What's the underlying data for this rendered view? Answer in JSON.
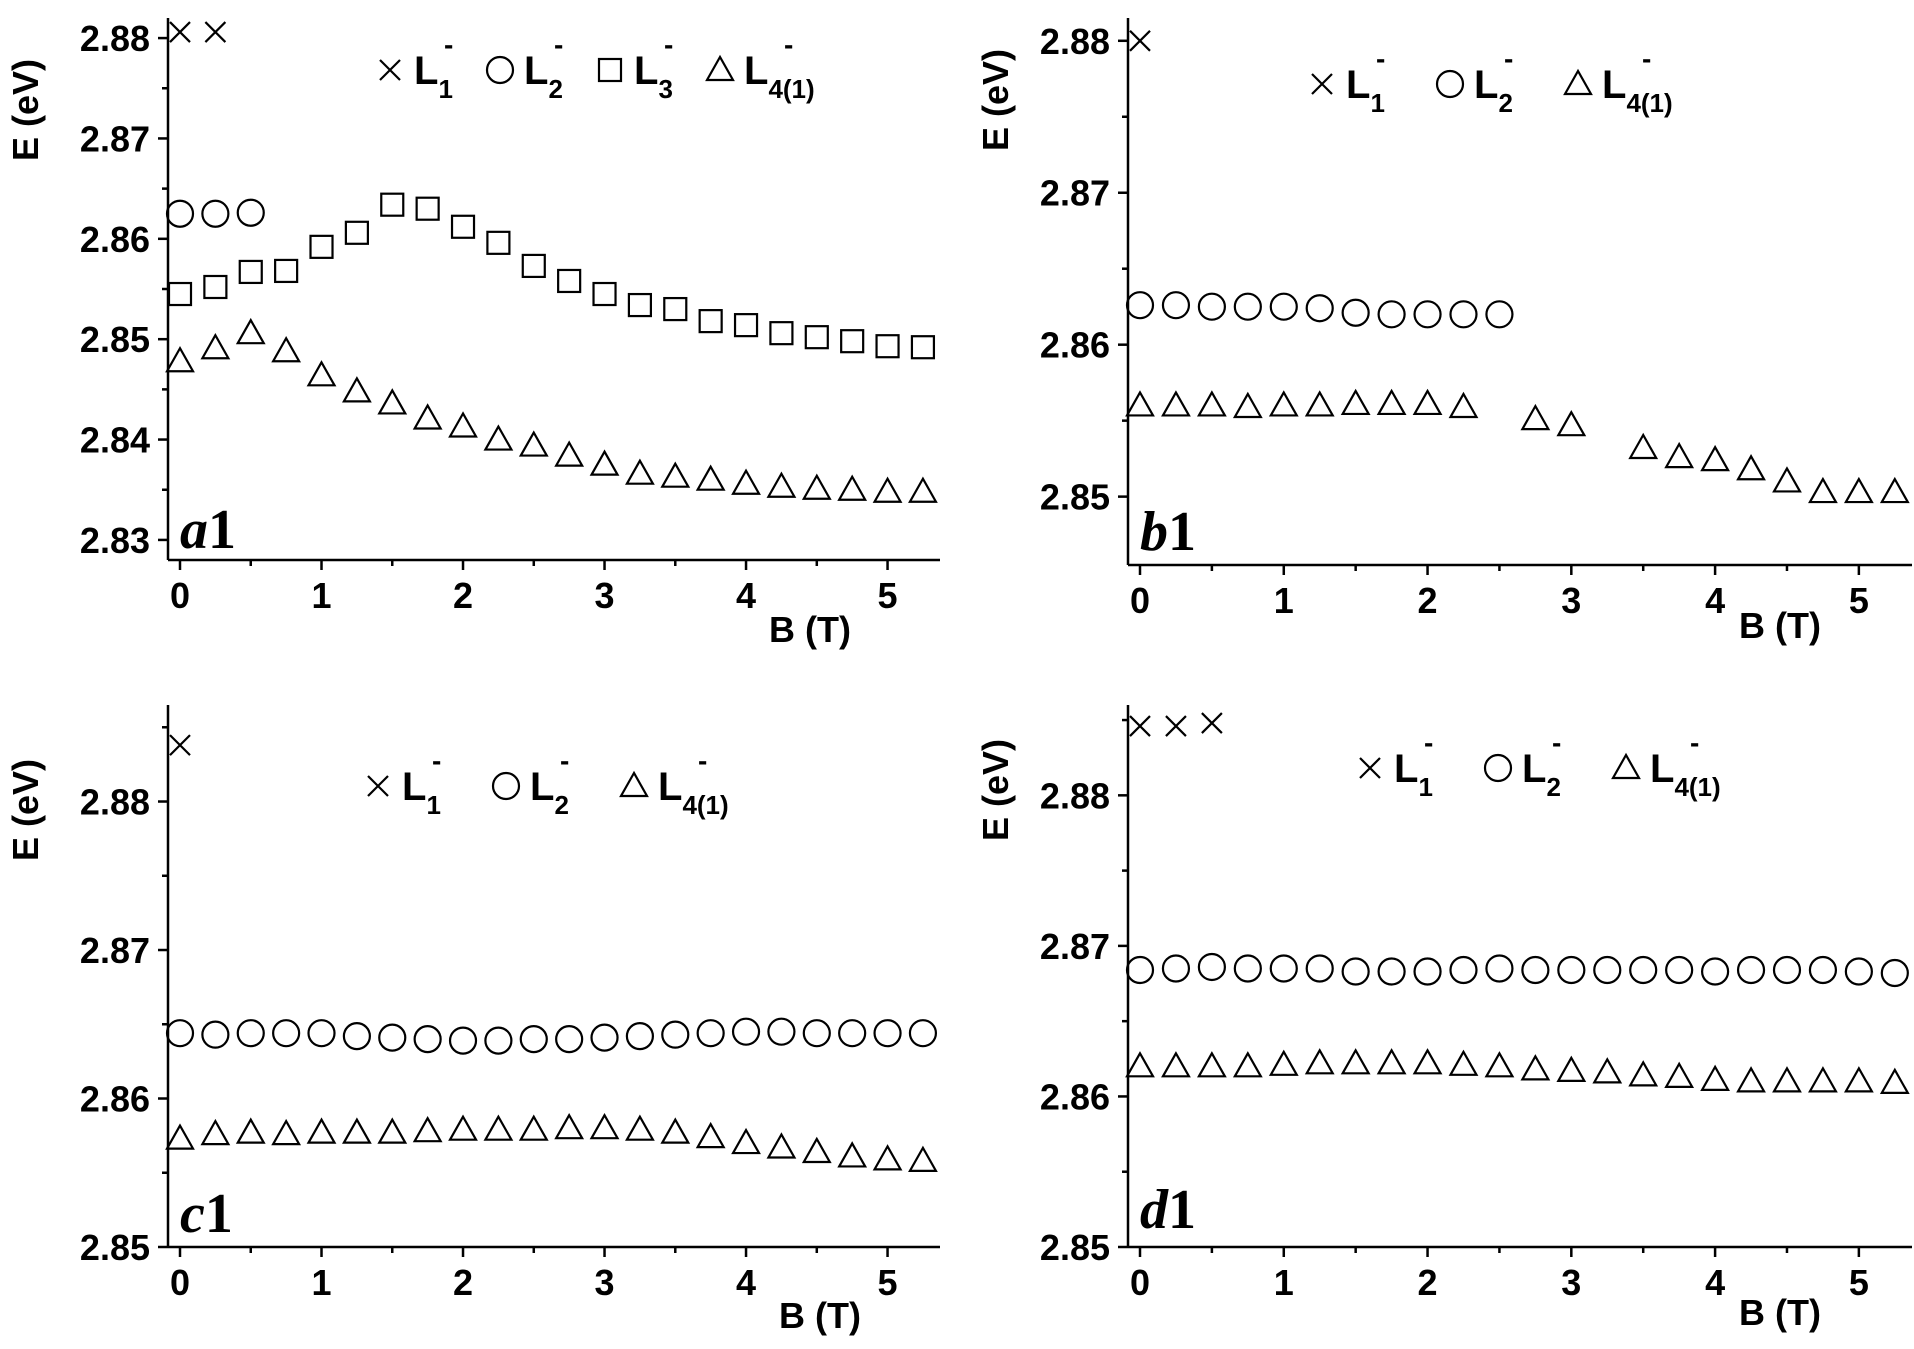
{
  "chart_data": [
    {
      "type": "scatter",
      "panel": "a1",
      "tag_letter": "a",
      "tag_number": "1",
      "xlabel": "B (T)",
      "ylabel": "E (eV)",
      "xlim": [
        -0.1,
        5.3
      ],
      "ylim": [
        2.828,
        2.882
      ],
      "xticks": [
        0,
        1,
        2,
        3,
        4,
        5
      ],
      "yticks": [
        2.83,
        2.84,
        2.85,
        2.86,
        2.87,
        2.88
      ],
      "legend": [
        {
          "marker": "x",
          "base": "L",
          "sub": "1",
          "sup": "-"
        },
        {
          "marker": "circle",
          "base": "L",
          "sub": "2",
          "sup": "-"
        },
        {
          "marker": "square",
          "base": "L",
          "sub": "3",
          "sup": "-"
        },
        {
          "marker": "triangle",
          "base": "L",
          "sub": "4(1)",
          "sup": "-"
        }
      ],
      "series": [
        {
          "marker": "x",
          "x": [
            0,
            0.25
          ],
          "y": [
            2.8806,
            2.8806
          ]
        },
        {
          "marker": "circle",
          "x": [
            0,
            0.25,
            0.5
          ],
          "y": [
            2.8625,
            2.8625,
            2.8626
          ]
        },
        {
          "marker": "square",
          "x": [
            0,
            0.25,
            0.5,
            0.75,
            1.0,
            1.25,
            1.5,
            1.75,
            2.0,
            2.25,
            2.5,
            2.75,
            3.0,
            3.25,
            3.5,
            3.75,
            4.0,
            4.25,
            4.5,
            4.75,
            5.0,
            5.25
          ],
          "y": [
            2.8545,
            2.8552,
            2.8567,
            2.8568,
            2.8592,
            2.8606,
            2.8634,
            2.863,
            2.8612,
            2.8596,
            2.8573,
            2.8558,
            2.8545,
            2.8534,
            2.853,
            2.8518,
            2.8514,
            2.8506,
            2.8502,
            2.8498,
            2.8493,
            2.8492
          ]
        },
        {
          "marker": "triangle",
          "x": [
            0,
            0.25,
            0.5,
            0.75,
            1.0,
            1.25,
            1.5,
            1.75,
            2.0,
            2.25,
            2.5,
            2.75,
            3.0,
            3.25,
            3.5,
            3.75,
            4.0,
            4.25,
            4.5,
            4.75,
            5.0,
            5.25
          ],
          "y": [
            2.8478,
            2.8491,
            2.8506,
            2.8488,
            2.8464,
            2.8448,
            2.8436,
            2.8421,
            2.8413,
            2.84,
            2.8394,
            2.8384,
            2.8375,
            2.8366,
            2.8363,
            2.836,
            2.8356,
            2.8353,
            2.8351,
            2.835,
            2.8348,
            2.8348
          ]
        }
      ]
    },
    {
      "type": "scatter",
      "panel": "b1",
      "tag_letter": "b",
      "tag_number": "1",
      "xlabel": "B (T)",
      "ylabel": "E (eV)",
      "xlim": [
        -0.1,
        5.3
      ],
      "ylim": [
        2.8455,
        2.8815
      ],
      "xticks": [
        0,
        1,
        2,
        3,
        4,
        5
      ],
      "yticks": [
        2.85,
        2.86,
        2.87,
        2.88
      ],
      "legend": [
        {
          "marker": "x",
          "base": "L",
          "sub": "1",
          "sup": "-"
        },
        {
          "marker": "circle",
          "base": "L",
          "sub": "2",
          "sup": "-"
        },
        {
          "marker": "triangle",
          "base": "L",
          "sub": "4(1)",
          "sup": "-"
        }
      ],
      "series": [
        {
          "marker": "x",
          "x": [
            0
          ],
          "y": [
            2.88
          ]
        },
        {
          "marker": "circle",
          "x": [
            0,
            0.25,
            0.5,
            0.75,
            1.0,
            1.25,
            1.5,
            1.75,
            2.0,
            2.25,
            2.5
          ],
          "y": [
            2.8626,
            2.8626,
            2.8625,
            2.8625,
            2.8625,
            2.8624,
            2.8621,
            2.862,
            2.862,
            2.862,
            2.862
          ]
        },
        {
          "marker": "triangle",
          "x": [
            0,
            0.25,
            0.5,
            0.75,
            1.0,
            1.25,
            1.5,
            1.75,
            2.0,
            2.25,
            2.75,
            3.0,
            3.5,
            3.75,
            4.0,
            4.25,
            4.5,
            4.75,
            5.0,
            5.25
          ],
          "y": [
            2.856,
            2.856,
            2.856,
            2.8559,
            2.856,
            2.856,
            2.8561,
            2.8561,
            2.8561,
            2.8559,
            2.8551,
            2.8547,
            2.8532,
            2.8526,
            2.8524,
            2.8518,
            2.851,
            2.8503,
            2.8503,
            2.8503
          ]
        }
      ]
    },
    {
      "type": "scatter",
      "panel": "c1",
      "tag_letter": "c",
      "tag_number": "1",
      "xlabel": "B (T)",
      "ylabel": "E (eV)",
      "xlim": [
        -0.1,
        5.3
      ],
      "ylim": [
        2.85,
        2.8865
      ],
      "xticks": [
        0,
        1,
        2,
        3,
        4,
        5
      ],
      "yticks": [
        2.85,
        2.86,
        2.87,
        2.88
      ],
      "legend": [
        {
          "marker": "x",
          "base": "L",
          "sub": "1",
          "sup": "-"
        },
        {
          "marker": "circle",
          "base": "L",
          "sub": "2",
          "sup": "-"
        },
        {
          "marker": "triangle",
          "base": "L",
          "sub": "4(1)",
          "sup": "-"
        }
      ],
      "series": [
        {
          "marker": "x",
          "x": [
            0
          ],
          "y": [
            2.8838
          ]
        },
        {
          "marker": "circle",
          "x": [
            0,
            0.25,
            0.5,
            0.75,
            1.0,
            1.25,
            1.5,
            1.75,
            2.0,
            2.25,
            2.5,
            2.75,
            3.0,
            3.25,
            3.5,
            3.75,
            4.0,
            4.25,
            4.5,
            4.75,
            5.0,
            5.25
          ],
          "y": [
            2.8644,
            2.8643,
            2.8644,
            2.8644,
            2.8644,
            2.8642,
            2.8641,
            2.864,
            2.8639,
            2.8639,
            2.864,
            2.864,
            2.8641,
            2.8642,
            2.8643,
            2.8644,
            2.8645,
            2.8645,
            2.8644,
            2.8644,
            2.8644,
            2.8644
          ]
        },
        {
          "marker": "triangle",
          "x": [
            0,
            0.25,
            0.5,
            0.75,
            1.0,
            1.25,
            1.5,
            1.75,
            2.0,
            2.25,
            2.5,
            2.75,
            3.0,
            3.25,
            3.5,
            3.75,
            4.0,
            4.25,
            4.5,
            4.75,
            5.0,
            5.25
          ],
          "y": [
            2.8573,
            2.8576,
            2.8577,
            2.8576,
            2.8577,
            2.8577,
            2.8577,
            2.8578,
            2.8579,
            2.8579,
            2.8579,
            2.858,
            2.858,
            2.8579,
            2.8577,
            2.8574,
            2.857,
            2.8567,
            2.8564,
            2.8561,
            2.8559,
            2.8558
          ]
        }
      ]
    },
    {
      "type": "scatter",
      "panel": "d1",
      "tag_letter": "d",
      "tag_number": "1",
      "xlabel": "B (T)",
      "ylabel": "E (eV)",
      "xlim": [
        -0.1,
        5.3
      ],
      "ylim": [
        2.85,
        2.886
      ],
      "xticks": [
        0,
        1,
        2,
        3,
        4,
        5
      ],
      "yticks": [
        2.85,
        2.86,
        2.87,
        2.88
      ],
      "legend": [
        {
          "marker": "x",
          "base": "L",
          "sub": "1",
          "sup": "-"
        },
        {
          "marker": "circle",
          "base": "L",
          "sub": "2",
          "sup": "-"
        },
        {
          "marker": "triangle",
          "base": "L",
          "sub": "4(1)",
          "sup": "-"
        }
      ],
      "series": [
        {
          "marker": "x",
          "x": [
            0,
            0.25,
            0.5
          ],
          "y": [
            2.8846,
            2.8846,
            2.8848
          ]
        },
        {
          "marker": "circle",
          "x": [
            0,
            0.25,
            0.5,
            0.75,
            1.0,
            1.25,
            1.5,
            1.75,
            2.0,
            2.25,
            2.5,
            2.75,
            3.0,
            3.25,
            3.5,
            3.75,
            4.0,
            4.25,
            4.5,
            4.75,
            5.0,
            5.25
          ],
          "y": [
            2.8684,
            2.8685,
            2.8686,
            2.8685,
            2.8685,
            2.8685,
            2.8683,
            2.8683,
            2.8683,
            2.8684,
            2.8685,
            2.8684,
            2.8684,
            2.8684,
            2.8684,
            2.8684,
            2.8683,
            2.8684,
            2.8684,
            2.8684,
            2.8683,
            2.8682
          ]
        },
        {
          "marker": "triangle",
          "x": [
            0,
            0.25,
            0.5,
            0.75,
            1.0,
            1.25,
            1.5,
            1.75,
            2.0,
            2.25,
            2.5,
            2.75,
            3.0,
            3.25,
            3.5,
            3.75,
            4.0,
            4.25,
            4.5,
            4.75,
            5.0,
            5.25
          ],
          "y": [
            2.862,
            2.862,
            2.862,
            2.862,
            2.8621,
            2.8622,
            2.8622,
            2.8622,
            2.8622,
            2.8621,
            2.862,
            2.8618,
            2.8617,
            2.8616,
            2.8614,
            2.8613,
            2.8611,
            2.861,
            2.861,
            2.861,
            2.861,
            2.8609
          ]
        }
      ]
    }
  ]
}
